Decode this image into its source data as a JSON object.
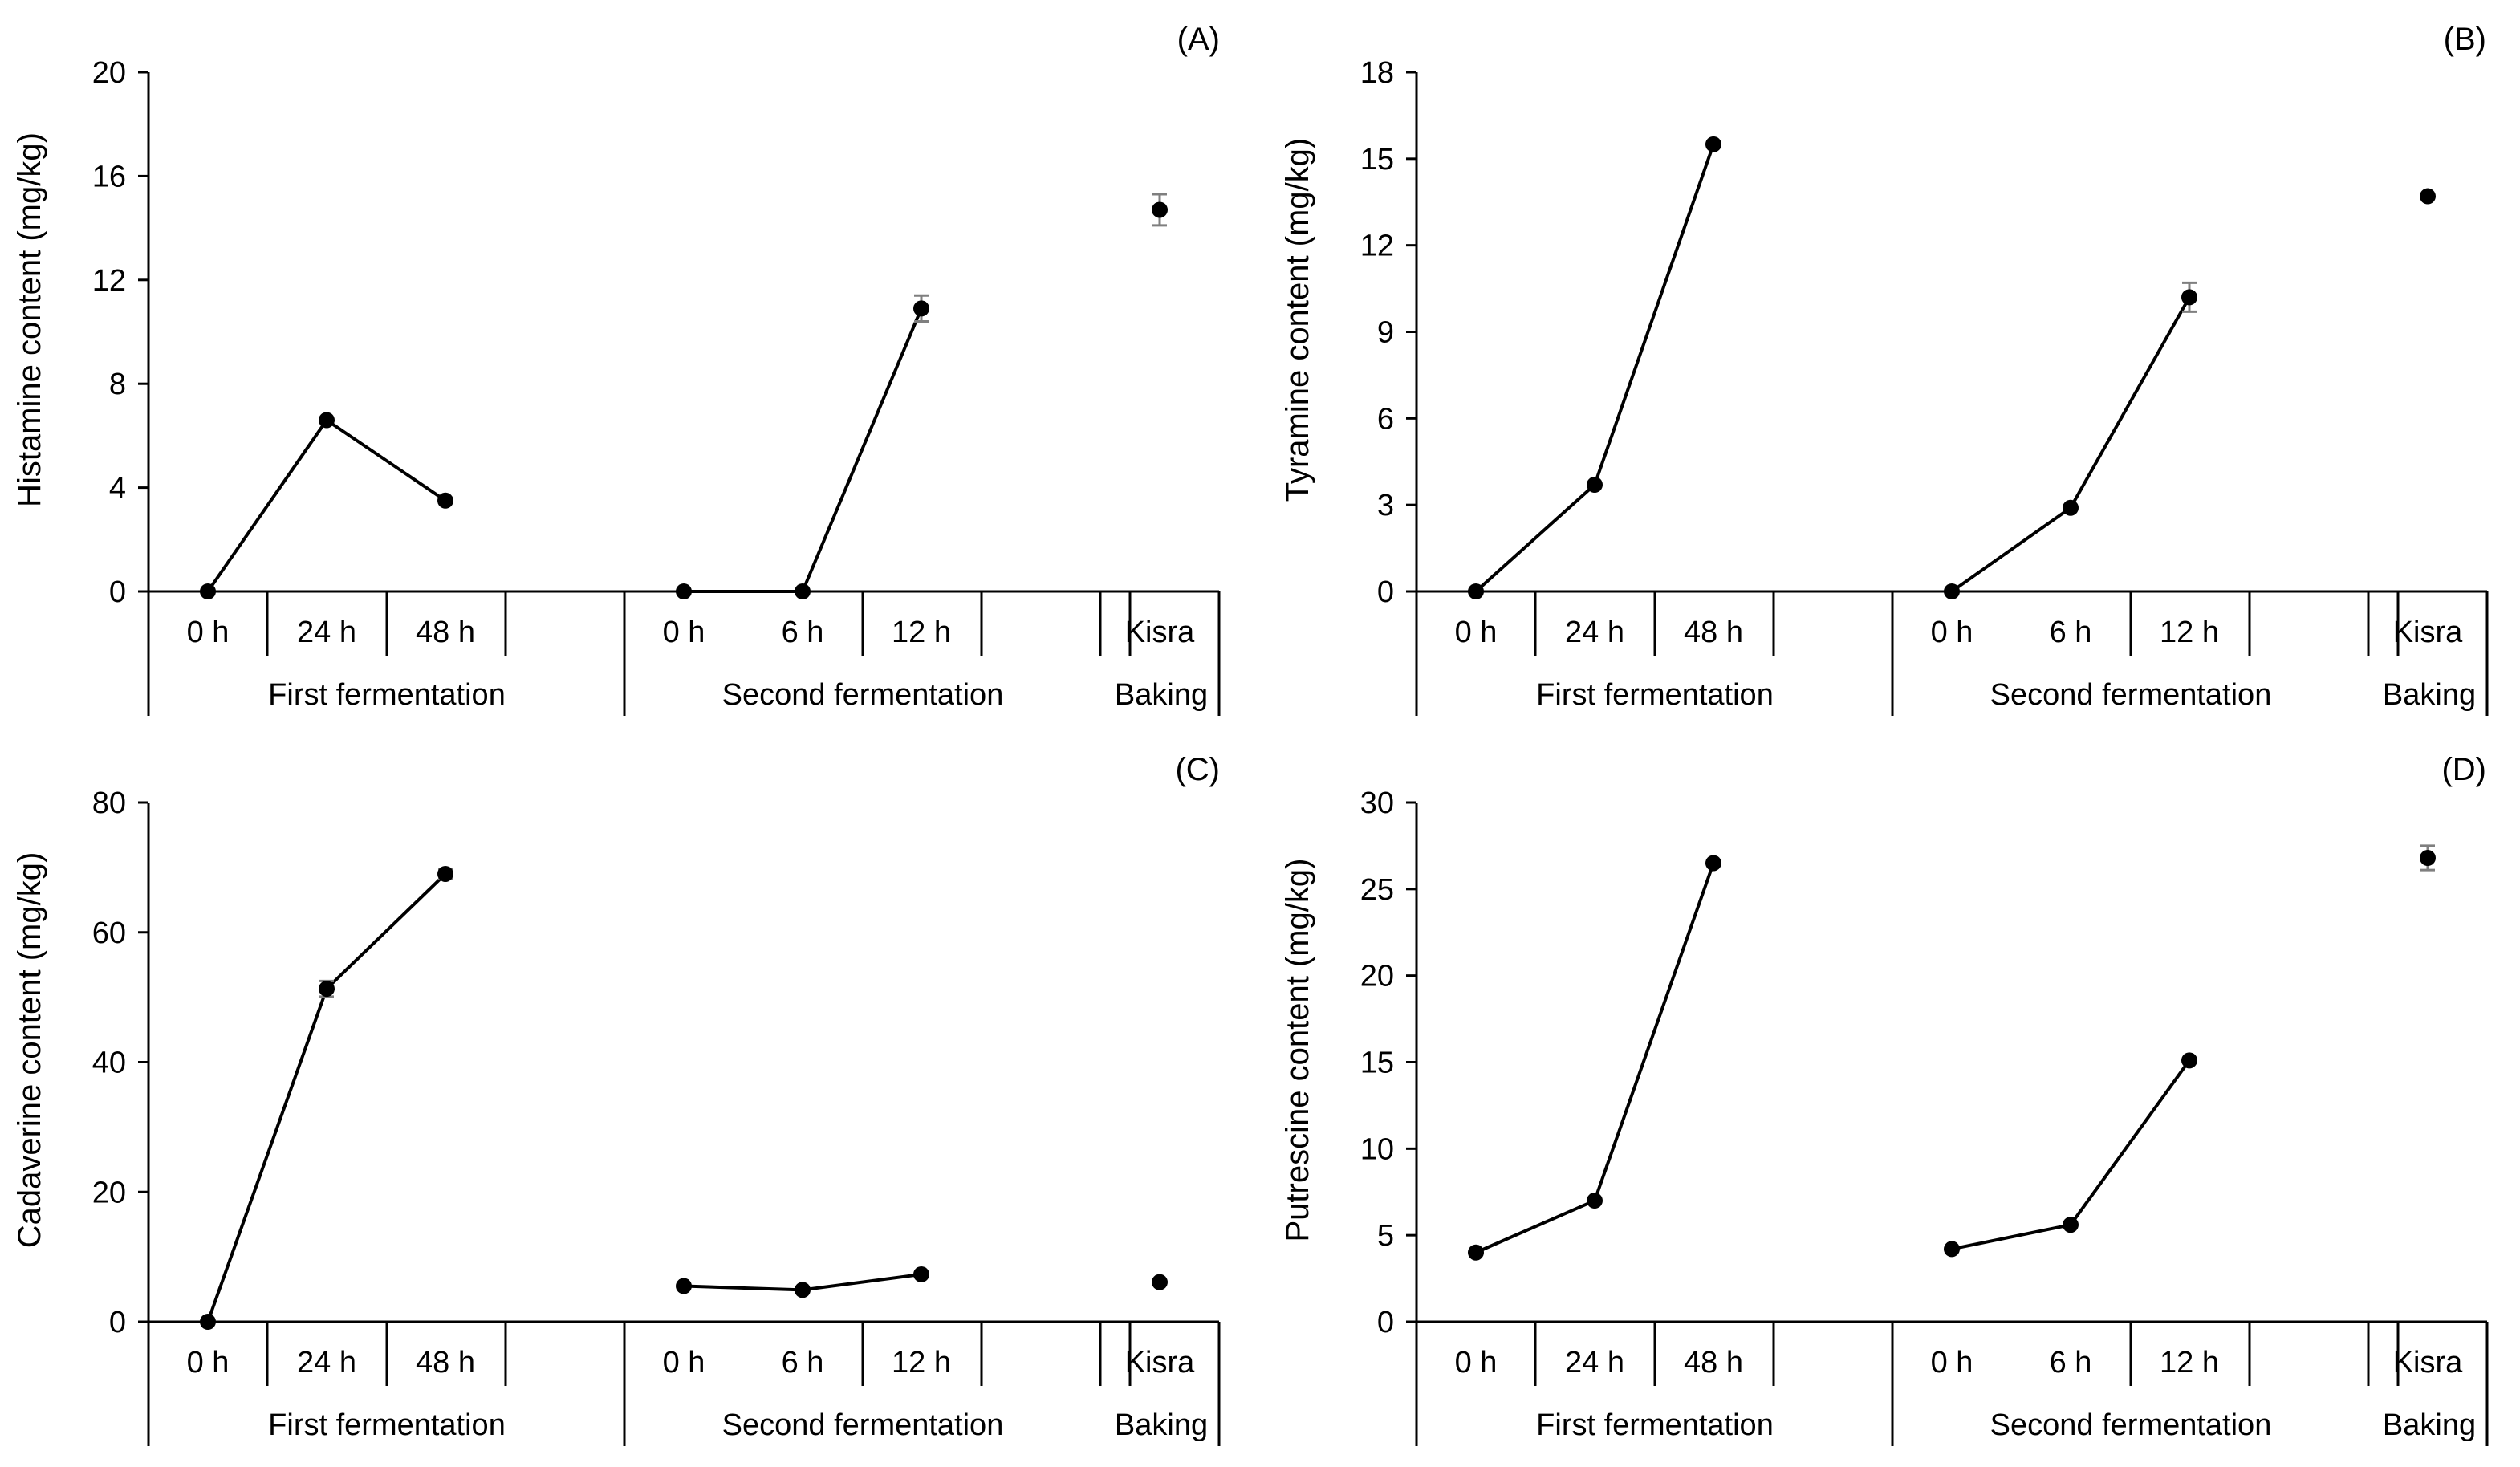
{
  "groups": {
    "first": "First fermentation",
    "second": "Second fermentation",
    "baking": "Baking"
  },
  "tick_labels": {
    "first": [
      "0 h",
      "24 h",
      "48 h"
    ],
    "second": [
      "0 h",
      "6 h",
      "12 h"
    ],
    "baking": [
      "Kisra"
    ]
  },
  "chart_data": [
    {
      "type": "line",
      "panel": "(A)",
      "ylabel": "Histamine content (mg/kg)",
      "ylim": [
        0,
        20
      ],
      "yticks": [
        0,
        4,
        8,
        12,
        16,
        20
      ],
      "first_values": [
        0,
        6.6,
        3.5
      ],
      "second_values": [
        0,
        0,
        10.9
      ],
      "second_errors": [
        0,
        0,
        0.5
      ],
      "kisra_value": 14.7,
      "kisra_error": 0.6
    },
    {
      "type": "line",
      "panel": "(B)",
      "ylabel": "Tyramine content (mg/kg)",
      "ylim": [
        0,
        18
      ],
      "yticks": [
        0,
        3,
        6,
        9,
        12,
        15,
        18
      ],
      "first_values": [
        0,
        3.7,
        15.5
      ],
      "second_values": [
        0,
        2.9,
        10.2
      ],
      "second_errors": [
        0,
        0,
        0.5
      ],
      "kisra_value": 13.7,
      "kisra_error": 0
    },
    {
      "type": "line",
      "panel": "(C)",
      "ylabel": "Cadaverine content (mg/kg)",
      "ylim": [
        0,
        80
      ],
      "yticks": [
        0,
        20,
        40,
        60,
        80
      ],
      "first_values": [
        0,
        51.3,
        69
      ],
      "first_errors": [
        0,
        1.2,
        0.8
      ],
      "second_values": [
        5.5,
        4.9,
        7.3
      ],
      "kisra_value": 6.1,
      "kisra_error": 0
    },
    {
      "type": "line",
      "panel": "(D)",
      "ylabel": "Putrescine content (mg/kg)",
      "ylim": [
        0,
        30
      ],
      "yticks": [
        0,
        5,
        10,
        15,
        20,
        25,
        30
      ],
      "first_values": [
        4,
        7,
        26.5
      ],
      "second_values": [
        4.2,
        5.6,
        15.1
      ],
      "kisra_value": 26.8,
      "kisra_error": 0.7
    }
  ]
}
